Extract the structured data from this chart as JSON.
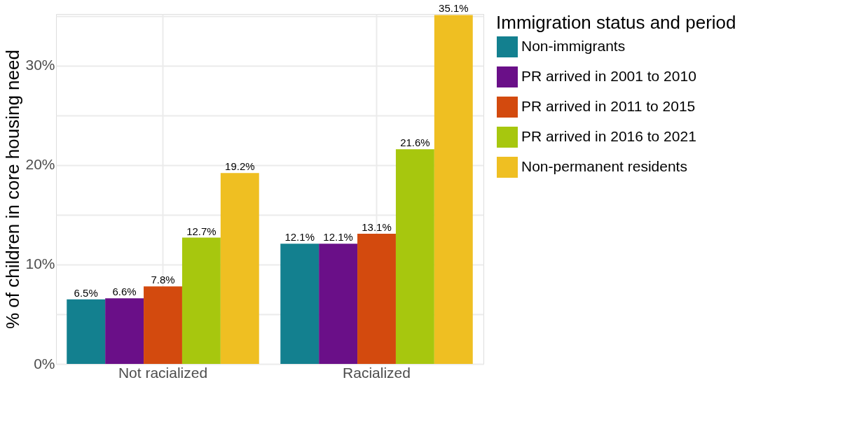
{
  "chart_data": {
    "type": "bar",
    "ylabel": "% of children in core housing need",
    "legend_title": "Immigration status and period",
    "categories": [
      "Not racialized",
      "Racialized"
    ],
    "series": [
      {
        "name": "Non-immigrants",
        "color": "#13808f",
        "values": [
          6.5,
          12.1
        ],
        "value_labels": [
          "6.5%",
          "12.1%"
        ]
      },
      {
        "name": "PR arrived in 2001 to 2010",
        "color": "#6a0f88",
        "values": [
          6.6,
          12.1
        ],
        "value_labels": [
          "6.6%",
          "12.1%"
        ]
      },
      {
        "name": "PR arrived in 2011 to 2015",
        "color": "#d34a0e",
        "values": [
          7.8,
          13.1
        ],
        "value_labels": [
          "7.8%",
          "13.1%"
        ]
      },
      {
        "name": "PR arrived in 2016 to 2021",
        "color": "#a7c70e",
        "values": [
          12.7,
          21.6
        ],
        "value_labels": [
          "12.7%",
          "21.6%"
        ]
      },
      {
        "name": "Non-permanent residents",
        "color": "#efbf22",
        "values": [
          19.2,
          35.1
        ],
        "value_labels": [
          "19.2%",
          "35.1%"
        ]
      }
    ],
    "ylim": [
      0,
      35.2
    ],
    "yticks": [
      {
        "value": 0,
        "label": "0%"
      },
      {
        "value": 5,
        "label": null
      },
      {
        "value": 10,
        "label": "10%"
      },
      {
        "value": 15,
        "label": null
      },
      {
        "value": 20,
        "label": "20%"
      },
      {
        "value": 25,
        "label": null
      },
      {
        "value": 30,
        "label": "30%"
      },
      {
        "value": 35,
        "label": null
      }
    ],
    "grid": true,
    "legend": "right"
  }
}
